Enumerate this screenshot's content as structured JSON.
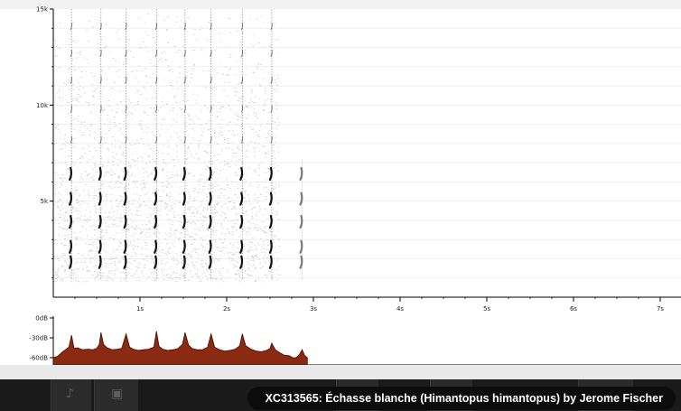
{
  "recording": {
    "caption": "XC313565: Échasse blanche (Himantopus himantopus) by Jerome Fischer"
  },
  "colors": {
    "page_background": "#ffffff",
    "player_background": "#1a1a1a",
    "caption_background": "#0c0c0c",
    "caption_text": "#ffffff",
    "waveform_fill": "#8b2a12",
    "waveform_stroke": "#3a0d05",
    "spectrogram_ink": "#111111"
  },
  "chart_data": [
    {
      "type": "heatmap",
      "name": "spectrogram",
      "x_unit": "s",
      "y_unit": "Hz",
      "xlim": [
        0,
        7.25
      ],
      "ylim": [
        0,
        15000
      ],
      "x_ticks": [
        {
          "value": 1,
          "label": "1s"
        },
        {
          "value": 2,
          "label": "2s"
        },
        {
          "value": 3,
          "label": "3s"
        },
        {
          "value": 4,
          "label": "4s"
        },
        {
          "value": 5,
          "label": "5s"
        },
        {
          "value": 6,
          "label": "6s"
        },
        {
          "value": 7,
          "label": "7s"
        }
      ],
      "y_ticks": [
        {
          "value": 5000,
          "label": "5k"
        },
        {
          "value": 10000,
          "label": "10k"
        },
        {
          "value": 15000,
          "label": "15k"
        }
      ],
      "grid": true,
      "call_times_s": [
        0.21,
        0.55,
        0.84,
        1.19,
        1.52,
        1.82,
        2.18,
        2.52,
        2.87
      ],
      "noise_extent_s": [
        0.0,
        2.6
      ],
      "noise_band_hz": [
        800,
        15000
      ],
      "band_centers_hz": [
        1800,
        2600,
        3900,
        5100,
        6400
      ],
      "faint_upper_harmonics_hz": [
        8200,
        9800,
        11300,
        12700,
        14100
      ]
    },
    {
      "type": "area",
      "name": "oscillogram",
      "x_unit": "s",
      "y_unit": "dB",
      "xlim": [
        0,
        7.25
      ],
      "ylim": [
        -60,
        0
      ],
      "y_ticks": [
        {
          "value": 0,
          "label": "0dB"
        },
        {
          "value": -30,
          "label": "-30dB"
        },
        {
          "value": -60,
          "label": "-60dB"
        }
      ],
      "x": [
        0.0,
        0.05,
        0.1,
        0.14,
        0.18,
        0.21,
        0.24,
        0.28,
        0.34,
        0.4,
        0.45,
        0.5,
        0.53,
        0.55,
        0.58,
        0.62,
        0.68,
        0.74,
        0.79,
        0.84,
        0.88,
        0.92,
        0.98,
        1.04,
        1.1,
        1.16,
        1.19,
        1.22,
        1.26,
        1.32,
        1.38,
        1.44,
        1.49,
        1.52,
        1.56,
        1.6,
        1.66,
        1.72,
        1.78,
        1.82,
        1.86,
        1.92,
        1.98,
        2.04,
        2.1,
        2.15,
        2.18,
        2.22,
        2.28,
        2.34,
        2.4,
        2.46,
        2.5,
        2.52,
        2.56,
        2.62,
        2.66,
        2.72,
        2.76,
        2.8,
        2.84,
        2.87,
        2.9,
        2.93
      ],
      "values": [
        -60,
        -58,
        -52,
        -48,
        -44,
        -26,
        -46,
        -45,
        -48,
        -47,
        -48,
        -46,
        -40,
        -22,
        -40,
        -45,
        -48,
        -47,
        -46,
        -24,
        -44,
        -47,
        -49,
        -48,
        -47,
        -44,
        -20,
        -43,
        -47,
        -49,
        -48,
        -46,
        -40,
        -22,
        -41,
        -46,
        -48,
        -48,
        -44,
        -24,
        -44,
        -48,
        -50,
        -49,
        -47,
        -42,
        -24,
        -42,
        -47,
        -50,
        -51,
        -49,
        -46,
        -38,
        -48,
        -53,
        -56,
        -57,
        -60,
        -60,
        -55,
        -48,
        -57,
        -60
      ]
    }
  ]
}
